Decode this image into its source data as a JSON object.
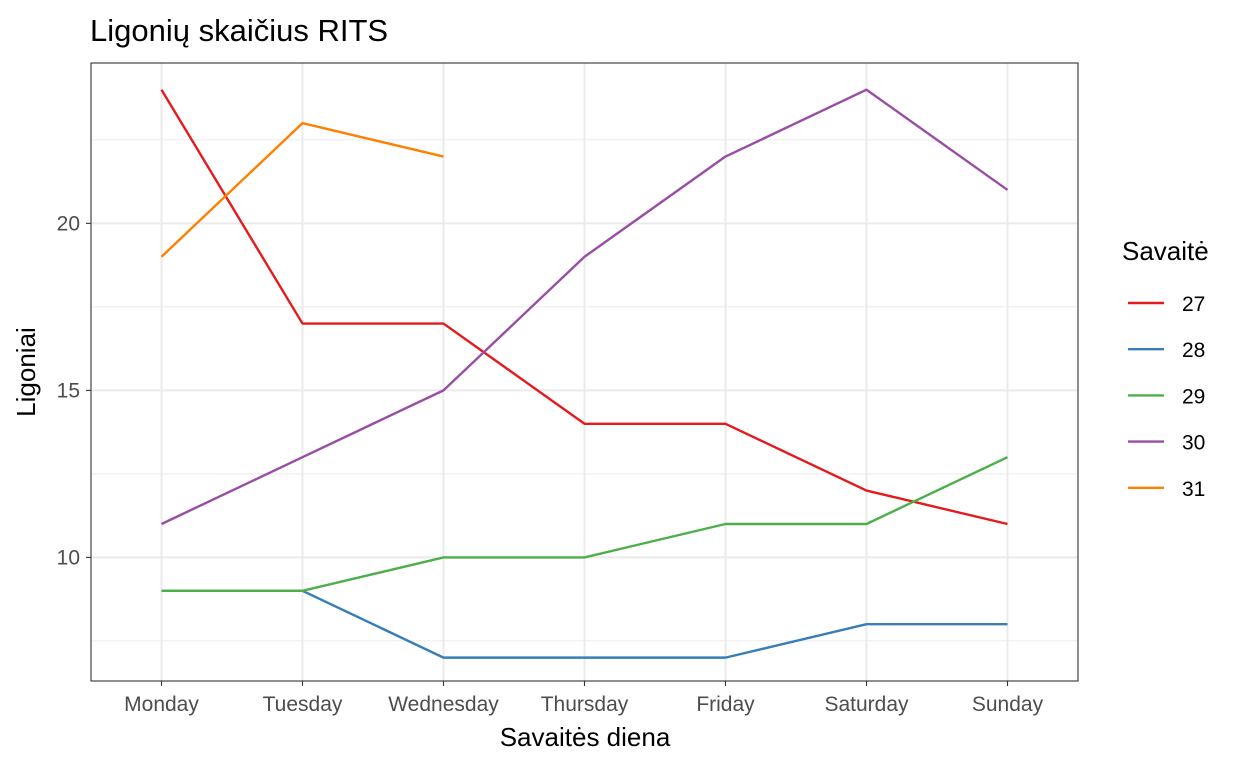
{
  "chart_data": {
    "type": "line",
    "title": "Ligonių skaičius RITS",
    "xlabel": "Savaitės diena",
    "ylabel": "Ligoniai",
    "categories": [
      "Monday",
      "Tuesday",
      "Wednesday",
      "Thursday",
      "Friday",
      "Saturday",
      "Sunday"
    ],
    "ylim": [
      6.3,
      24.8
    ],
    "yticks": [
      10,
      15,
      20
    ],
    "grid": true,
    "legend": {
      "title": "Savaitė",
      "position": "right"
    },
    "series": [
      {
        "name": "27",
        "color": "#E41A1C",
        "values": [
          24,
          17,
          17,
          14,
          14,
          12,
          11
        ]
      },
      {
        "name": "28",
        "color": "#377EB8",
        "values": [
          9,
          9,
          7,
          7,
          7,
          8,
          8
        ]
      },
      {
        "name": "29",
        "color": "#4DAF4A",
        "values": [
          9,
          9,
          10,
          10,
          11,
          11,
          13
        ]
      },
      {
        "name": "30",
        "color": "#984EA3",
        "values": [
          11,
          13,
          15,
          19,
          22,
          24,
          21
        ]
      },
      {
        "name": "31",
        "color": "#FF7F00",
        "values": [
          19,
          23,
          22,
          null,
          null,
          null,
          null
        ]
      }
    ]
  }
}
